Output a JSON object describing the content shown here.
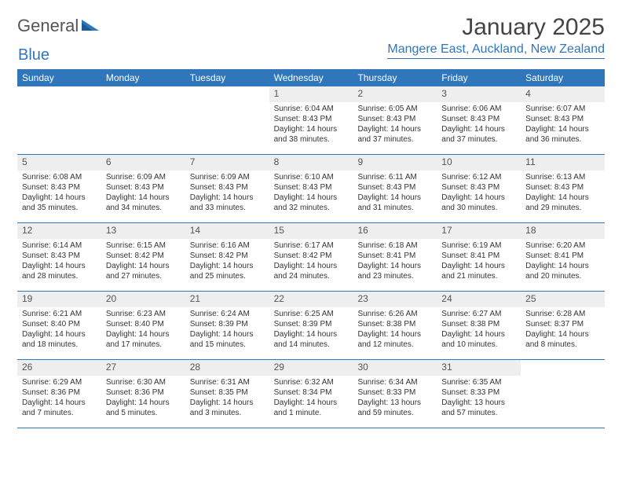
{
  "brand": {
    "name1": "General",
    "name2": "Blue"
  },
  "title": "January 2025",
  "location": "Mangere East, Auckland, New Zealand",
  "colors": {
    "accent": "#2f76bb",
    "head_bg": "#2f76bb",
    "head_text": "#ffffff",
    "daynum_bg": "#eeeeee",
    "text": "#333333"
  },
  "day_headers": [
    "Sunday",
    "Monday",
    "Tuesday",
    "Wednesday",
    "Thursday",
    "Friday",
    "Saturday"
  ],
  "weeks": [
    [
      {
        "num": "",
        "sunrise": "",
        "sunset": "",
        "daylight": ""
      },
      {
        "num": "",
        "sunrise": "",
        "sunset": "",
        "daylight": ""
      },
      {
        "num": "",
        "sunrise": "",
        "sunset": "",
        "daylight": ""
      },
      {
        "num": "1",
        "sunrise": "Sunrise: 6:04 AM",
        "sunset": "Sunset: 8:43 PM",
        "daylight": "Daylight: 14 hours and 38 minutes."
      },
      {
        "num": "2",
        "sunrise": "Sunrise: 6:05 AM",
        "sunset": "Sunset: 8:43 PM",
        "daylight": "Daylight: 14 hours and 37 minutes."
      },
      {
        "num": "3",
        "sunrise": "Sunrise: 6:06 AM",
        "sunset": "Sunset: 8:43 PM",
        "daylight": "Daylight: 14 hours and 37 minutes."
      },
      {
        "num": "4",
        "sunrise": "Sunrise: 6:07 AM",
        "sunset": "Sunset: 8:43 PM",
        "daylight": "Daylight: 14 hours and 36 minutes."
      }
    ],
    [
      {
        "num": "5",
        "sunrise": "Sunrise: 6:08 AM",
        "sunset": "Sunset: 8:43 PM",
        "daylight": "Daylight: 14 hours and 35 minutes."
      },
      {
        "num": "6",
        "sunrise": "Sunrise: 6:09 AM",
        "sunset": "Sunset: 8:43 PM",
        "daylight": "Daylight: 14 hours and 34 minutes."
      },
      {
        "num": "7",
        "sunrise": "Sunrise: 6:09 AM",
        "sunset": "Sunset: 8:43 PM",
        "daylight": "Daylight: 14 hours and 33 minutes."
      },
      {
        "num": "8",
        "sunrise": "Sunrise: 6:10 AM",
        "sunset": "Sunset: 8:43 PM",
        "daylight": "Daylight: 14 hours and 32 minutes."
      },
      {
        "num": "9",
        "sunrise": "Sunrise: 6:11 AM",
        "sunset": "Sunset: 8:43 PM",
        "daylight": "Daylight: 14 hours and 31 minutes."
      },
      {
        "num": "10",
        "sunrise": "Sunrise: 6:12 AM",
        "sunset": "Sunset: 8:43 PM",
        "daylight": "Daylight: 14 hours and 30 minutes."
      },
      {
        "num": "11",
        "sunrise": "Sunrise: 6:13 AM",
        "sunset": "Sunset: 8:43 PM",
        "daylight": "Daylight: 14 hours and 29 minutes."
      }
    ],
    [
      {
        "num": "12",
        "sunrise": "Sunrise: 6:14 AM",
        "sunset": "Sunset: 8:43 PM",
        "daylight": "Daylight: 14 hours and 28 minutes."
      },
      {
        "num": "13",
        "sunrise": "Sunrise: 6:15 AM",
        "sunset": "Sunset: 8:42 PM",
        "daylight": "Daylight: 14 hours and 27 minutes."
      },
      {
        "num": "14",
        "sunrise": "Sunrise: 6:16 AM",
        "sunset": "Sunset: 8:42 PM",
        "daylight": "Daylight: 14 hours and 25 minutes."
      },
      {
        "num": "15",
        "sunrise": "Sunrise: 6:17 AM",
        "sunset": "Sunset: 8:42 PM",
        "daylight": "Daylight: 14 hours and 24 minutes."
      },
      {
        "num": "16",
        "sunrise": "Sunrise: 6:18 AM",
        "sunset": "Sunset: 8:41 PM",
        "daylight": "Daylight: 14 hours and 23 minutes."
      },
      {
        "num": "17",
        "sunrise": "Sunrise: 6:19 AM",
        "sunset": "Sunset: 8:41 PM",
        "daylight": "Daylight: 14 hours and 21 minutes."
      },
      {
        "num": "18",
        "sunrise": "Sunrise: 6:20 AM",
        "sunset": "Sunset: 8:41 PM",
        "daylight": "Daylight: 14 hours and 20 minutes."
      }
    ],
    [
      {
        "num": "19",
        "sunrise": "Sunrise: 6:21 AM",
        "sunset": "Sunset: 8:40 PM",
        "daylight": "Daylight: 14 hours and 18 minutes."
      },
      {
        "num": "20",
        "sunrise": "Sunrise: 6:23 AM",
        "sunset": "Sunset: 8:40 PM",
        "daylight": "Daylight: 14 hours and 17 minutes."
      },
      {
        "num": "21",
        "sunrise": "Sunrise: 6:24 AM",
        "sunset": "Sunset: 8:39 PM",
        "daylight": "Daylight: 14 hours and 15 minutes."
      },
      {
        "num": "22",
        "sunrise": "Sunrise: 6:25 AM",
        "sunset": "Sunset: 8:39 PM",
        "daylight": "Daylight: 14 hours and 14 minutes."
      },
      {
        "num": "23",
        "sunrise": "Sunrise: 6:26 AM",
        "sunset": "Sunset: 8:38 PM",
        "daylight": "Daylight: 14 hours and 12 minutes."
      },
      {
        "num": "24",
        "sunrise": "Sunrise: 6:27 AM",
        "sunset": "Sunset: 8:38 PM",
        "daylight": "Daylight: 14 hours and 10 minutes."
      },
      {
        "num": "25",
        "sunrise": "Sunrise: 6:28 AM",
        "sunset": "Sunset: 8:37 PM",
        "daylight": "Daylight: 14 hours and 8 minutes."
      }
    ],
    [
      {
        "num": "26",
        "sunrise": "Sunrise: 6:29 AM",
        "sunset": "Sunset: 8:36 PM",
        "daylight": "Daylight: 14 hours and 7 minutes."
      },
      {
        "num": "27",
        "sunrise": "Sunrise: 6:30 AM",
        "sunset": "Sunset: 8:36 PM",
        "daylight": "Daylight: 14 hours and 5 minutes."
      },
      {
        "num": "28",
        "sunrise": "Sunrise: 6:31 AM",
        "sunset": "Sunset: 8:35 PM",
        "daylight": "Daylight: 14 hours and 3 minutes."
      },
      {
        "num": "29",
        "sunrise": "Sunrise: 6:32 AM",
        "sunset": "Sunset: 8:34 PM",
        "daylight": "Daylight: 14 hours and 1 minute."
      },
      {
        "num": "30",
        "sunrise": "Sunrise: 6:34 AM",
        "sunset": "Sunset: 8:33 PM",
        "daylight": "Daylight: 13 hours and 59 minutes."
      },
      {
        "num": "31",
        "sunrise": "Sunrise: 6:35 AM",
        "sunset": "Sunset: 8:33 PM",
        "daylight": "Daylight: 13 hours and 57 minutes."
      },
      {
        "num": "",
        "sunrise": "",
        "sunset": "",
        "daylight": ""
      }
    ]
  ]
}
